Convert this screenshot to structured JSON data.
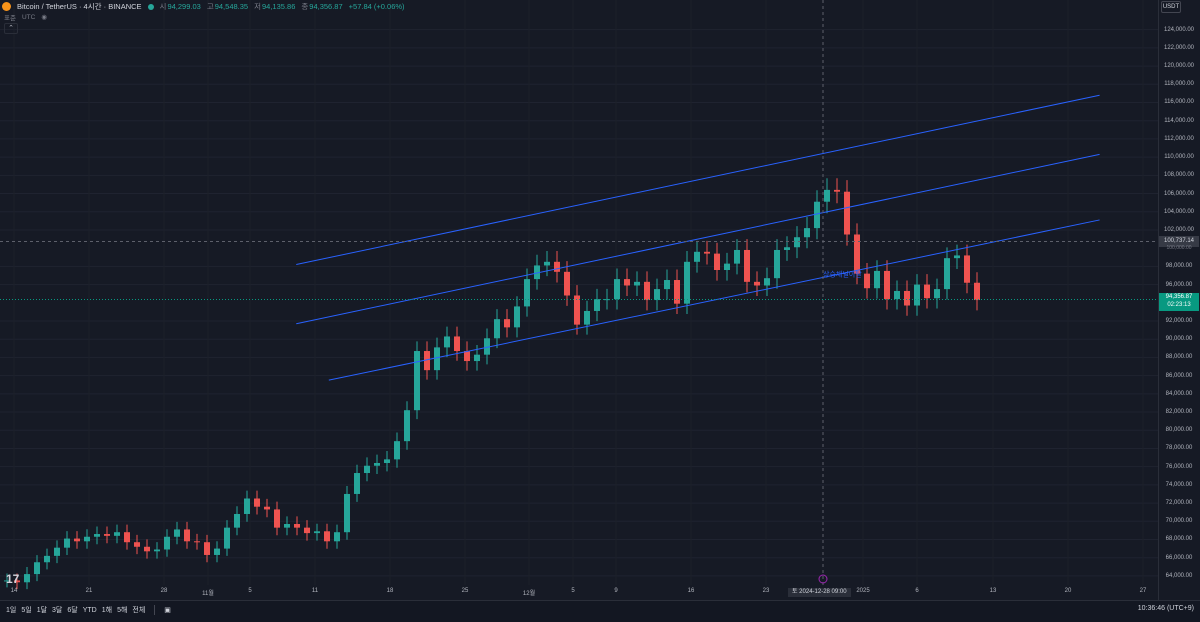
{
  "header": {
    "symbol": "Bitcoin / TetherUS · 4시간 · BINANCE",
    "open_label": "시",
    "open": "94,299.03",
    "high_label": "고",
    "high": "94,548.35",
    "low_label": "저",
    "low": "94,135.86",
    "close_label": "종",
    "close": "94,356.87",
    "change": "+57.84 (+0.06%)",
    "sub_left": "표준",
    "sub_mid": "UTC",
    "currency": "USDT"
  },
  "price_axis": {
    "labels": [
      "124,000.00",
      "122,000.00",
      "120,000.00",
      "118,000.00",
      "116,000.00",
      "114,000.00",
      "112,000.00",
      "110,000.00",
      "108,000.00",
      "106,000.00",
      "104,000.00",
      "102,000.00",
      "98,000.00",
      "96,000.00",
      "92,000.00",
      "90,000.00",
      "88,000.00",
      "86,000.00",
      "84,000.00",
      "82,000.00",
      "80,000.00",
      "78,000.00",
      "76,000.00",
      "74,000.00",
      "72,000.00",
      "70,000.00",
      "68,000.00",
      "66,000.00",
      "64,000.00"
    ],
    "crosshair_price": "100,737.14",
    "crosshair_sub": "100,000.00",
    "last_price": "94,356.87",
    "countdown": "02:23:13"
  },
  "time_axis": {
    "labels": [
      "14",
      "21",
      "28",
      "11월",
      "5",
      "11",
      "18",
      "25",
      "12월",
      "5",
      "9",
      "16",
      "23",
      "2025",
      "6",
      "13",
      "20",
      "27"
    ],
    "cursor_label": "토 2024-12-28  09:00"
  },
  "annotation": "상승채널이탈",
  "timeframes": [
    "1일",
    "5일",
    "1달",
    "3달",
    "6달",
    "YTD",
    "1해",
    "5해",
    "전체"
  ],
  "clock": "10:36:46 (UTC+9)",
  "logo": "17",
  "colors": {
    "up": "#26a69a",
    "down": "#ef5350",
    "channel": "#2962ff",
    "background": "#161a25"
  },
  "chart_data": {
    "type": "candlestick",
    "x_labels": [
      "14",
      "21",
      "28",
      "11월",
      "5",
      "11",
      "18",
      "25",
      "12월",
      "5",
      "9",
      "16",
      "23",
      "2025",
      "6",
      "13",
      "20",
      "27"
    ],
    "ylim": [
      63000,
      125500
    ],
    "series": [
      {
        "values": [
          63500,
          63300,
          64200,
          65500,
          66200,
          67100,
          68100,
          67800,
          68300,
          68600,
          68400,
          68800,
          67700,
          67200,
          66700,
          66900,
          68300,
          69100,
          67800,
          67700,
          66300,
          67000,
          69300,
          70800,
          72500,
          71600,
          71300,
          69300,
          69700,
          69300,
          68700,
          68900,
          67800,
          68800,
          73000,
          75300,
          76100,
          76400,
          76800,
          78800,
          82200,
          88700,
          86600,
          89100,
          90300,
          88700,
          87600,
          88300,
          90100,
          92200,
          91300,
          93600,
          96600,
          98100,
          98500,
          97400,
          94800,
          91600,
          93100,
          94400,
          94400,
          96600,
          95900,
          96300,
          94300,
          95500,
          96500,
          93900,
          98500,
          99600,
          99400,
          97600,
          98300,
          99800,
          96300,
          95900,
          96700,
          99800,
          100100,
          101200,
          102200,
          105100,
          106400,
          106200,
          101500,
          97200,
          95600,
          97500,
          94400,
          95300,
          93700,
          96000,
          94500,
          95500,
          98900,
          99200,
          96200,
          94300
        ]
      }
    ],
    "channel": {
      "lines": [
        {
          "x": [
            "2024-11-09",
            "2025-01-22"
          ],
          "y": [
            98200,
            116800
          ]
        },
        {
          "x": [
            "2024-11-09",
            "2025-01-22"
          ],
          "y": [
            91700,
            110300
          ]
        },
        {
          "x": [
            "2024-11-12",
            "2025-01-22"
          ],
          "y": [
            85500,
            103100
          ]
        }
      ]
    }
  }
}
